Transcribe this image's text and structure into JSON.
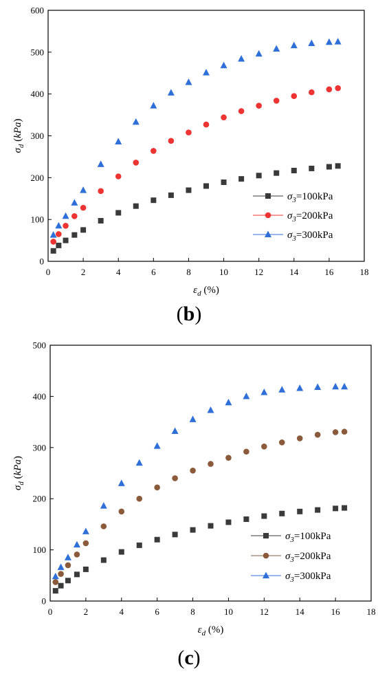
{
  "panels": [
    {
      "label": "b",
      "legend": [
        "σ3=100kPa",
        "σ3=200kPa",
        "σ3=300kPa"
      ],
      "chart_data": {
        "type": "scatter",
        "xlabel": "εd (%)",
        "ylabel": "σd (kPa)",
        "xlim": [
          0,
          18
        ],
        "ylim": [
          0,
          600
        ],
        "xticks": [
          0,
          2,
          4,
          6,
          8,
          10,
          12,
          14,
          16,
          18
        ],
        "yticks": [
          0,
          100,
          200,
          300,
          400,
          500,
          600
        ],
        "legend_position": "bottom-right",
        "series": [
          {
            "name": "σ3=100kPa",
            "marker": "square",
            "color": "#3a3a3a",
            "x": [
              0,
              0.3,
              0.6,
              1,
              1.5,
              2,
              3,
              4,
              5,
              6,
              7,
              8,
              9,
              10,
              11,
              12,
              13,
              14,
              15,
              16,
              16.5
            ],
            "y": [
              0,
              25,
              38,
              50,
              63,
              75,
              97,
              116,
              132,
              146,
              158,
              170,
              180,
              189,
              197,
              205,
              211,
              217,
              222,
              226,
              228
            ]
          },
          {
            "name": "σ3=200kPa",
            "marker": "circle",
            "color": "#ee3333",
            "x": [
              0,
              0.3,
              0.6,
              1,
              1.5,
              2,
              3,
              4,
              5,
              6,
              7,
              8,
              9,
              10,
              11,
              12,
              13,
              14,
              15,
              16,
              16.5
            ],
            "y": [
              0,
              47,
              65,
              85,
              108,
              128,
              168,
              203,
              236,
              264,
              288,
              308,
              327,
              344,
              359,
              372,
              384,
              395,
              404,
              411,
              414
            ]
          },
          {
            "name": "σ3=300kPa",
            "marker": "triangle",
            "color": "#2f6fd8",
            "x": [
              0,
              0.3,
              0.6,
              1,
              1.5,
              2,
              3,
              4,
              5,
              6,
              7,
              8,
              9,
              10,
              11,
              12,
              13,
              14,
              15,
              16,
              16.5
            ],
            "y": [
              0,
              63,
              85,
              108,
              140,
              170,
              232,
              286,
              333,
              372,
              403,
              428,
              451,
              468,
              484,
              496,
              508,
              516,
              521,
              524,
              525
            ]
          }
        ]
      }
    },
    {
      "label": "c",
      "legend": [
        "σ3=100kPa",
        "σ3=200kPa",
        "σ3=300kPa"
      ],
      "chart_data": {
        "type": "scatter",
        "xlabel": "εd (%)",
        "ylabel": "σd (kPa)",
        "xlim": [
          0,
          18
        ],
        "ylim": [
          0,
          500
        ],
        "xticks": [
          0,
          2,
          4,
          6,
          8,
          10,
          12,
          14,
          16,
          18
        ],
        "yticks": [
          0,
          100,
          200,
          300,
          400,
          500
        ],
        "legend_position": "bottom-right",
        "series": [
          {
            "name": "σ3=100kPa",
            "marker": "square",
            "color": "#3a3a3a",
            "x": [
              0,
              0.3,
              0.6,
              1,
              1.5,
              2,
              3,
              4,
              5,
              6,
              7,
              8,
              9,
              10,
              11,
              12,
              13,
              14,
              15,
              16,
              16.5
            ],
            "y": [
              0,
              20,
              30,
              40,
              52,
              62,
              80,
              96,
              109,
              120,
              130,
              139,
              147,
              154,
              160,
              166,
              171,
              175,
              178,
              181,
              182
            ]
          },
          {
            "name": "σ3=200kPa",
            "marker": "circle",
            "color": "#8a5a3a",
            "x": [
              0,
              0.3,
              0.6,
              1,
              1.5,
              2,
              3,
              4,
              5,
              6,
              7,
              8,
              9,
              10,
              11,
              12,
              13,
              14,
              15,
              16,
              16.5
            ],
            "y": [
              0,
              37,
              53,
              70,
              91,
              113,
              146,
              175,
              200,
              222,
              240,
              255,
              268,
              280,
              292,
              302,
              310,
              318,
              325,
              330,
              331
            ]
          },
          {
            "name": "σ3=300kPa",
            "marker": "triangle",
            "color": "#2f6fd8",
            "x": [
              0,
              0.3,
              0.6,
              1,
              1.5,
              2,
              3,
              4,
              5,
              6,
              7,
              8,
              9,
              10,
              11,
              12,
              13,
              14,
              15,
              16,
              16.5
            ],
            "y": [
              0,
              48,
              66,
              85,
              110,
              136,
              186,
              230,
              270,
              303,
              332,
              355,
              373,
              388,
              400,
              408,
              413,
              416,
              418,
              419,
              419
            ]
          }
        ]
      }
    }
  ]
}
